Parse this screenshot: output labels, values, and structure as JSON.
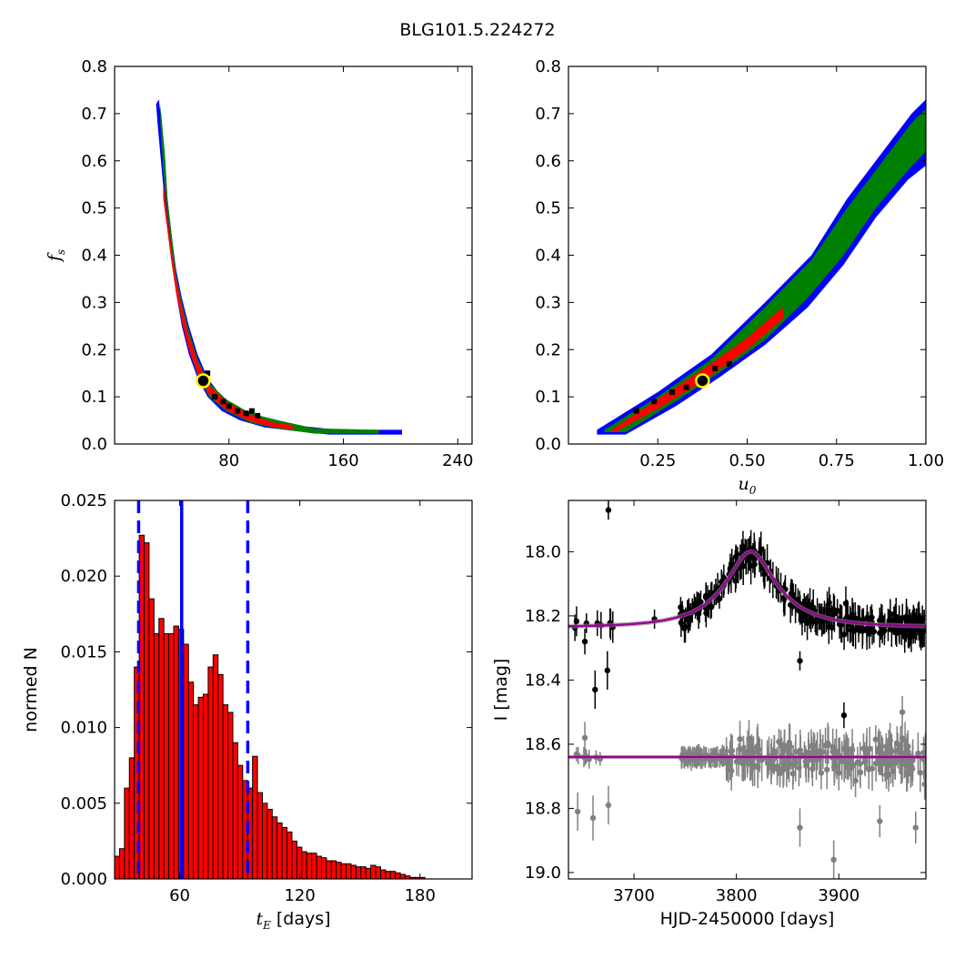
{
  "figure": {
    "title": "BLG101.5.224272"
  },
  "colors": {
    "sigma1": "#ff0000",
    "sigma2": "#008000",
    "sigma3": "#0000ff",
    "best_fill": "#000000",
    "best_marker_edge": "#ffff00",
    "best_marker_face": "#000000",
    "hist_fill": "#ff0000",
    "hist_edge": "#000000",
    "hist_lines": "#0000ff",
    "data_main": "#000000",
    "data_ref": "#808080",
    "model": "#990099"
  },
  "chart_data": [
    {
      "panel": "top-left",
      "type": "heatmap",
      "title": "",
      "xlabel": "",
      "ylabel": "f_s",
      "xlim": [
        0,
        250
      ],
      "ylim": [
        0.0,
        0.8
      ],
      "xticks": [
        80,
        160,
        240
      ],
      "xtick_labels": [
        "80",
        "160",
        "240"
      ],
      "yticks": [
        0.0,
        0.1,
        0.2,
        0.3,
        0.4,
        0.5,
        0.6,
        0.7,
        0.8
      ],
      "ytick_labels": [
        "0.0",
        "0.1",
        "0.2",
        "0.3",
        "0.4",
        "0.5",
        "0.6",
        "0.7",
        "0.8"
      ],
      "regions": {
        "sigma3": [
          [
            31,
            0.73
          ],
          [
            35,
            0.62
          ],
          [
            37,
            0.52
          ],
          [
            40,
            0.44
          ],
          [
            43,
            0.37
          ],
          [
            47,
            0.31
          ],
          [
            52,
            0.25
          ],
          [
            58,
            0.19
          ],
          [
            65,
            0.14
          ],
          [
            75,
            0.1
          ],
          [
            88,
            0.075
          ],
          [
            105,
            0.055
          ],
          [
            125,
            0.04
          ],
          [
            150,
            0.032
          ],
          [
            175,
            0.03
          ],
          [
            201,
            0.03
          ],
          [
            201,
            0.02
          ],
          [
            175,
            0.02
          ],
          [
            150,
            0.02
          ],
          [
            125,
            0.028
          ],
          [
            105,
            0.035
          ],
          [
            88,
            0.05
          ],
          [
            75,
            0.07
          ],
          [
            65,
            0.1
          ],
          [
            58,
            0.14
          ],
          [
            52,
            0.19
          ],
          [
            47,
            0.25
          ],
          [
            43,
            0.32
          ],
          [
            40,
            0.4
          ],
          [
            36,
            0.48
          ],
          [
            33,
            0.58
          ],
          [
            30,
            0.68
          ],
          [
            29,
            0.72
          ]
        ],
        "sigma2": [
          [
            32,
            0.72
          ],
          [
            35,
            0.62
          ],
          [
            37,
            0.52
          ],
          [
            40,
            0.44
          ],
          [
            43,
            0.36
          ],
          [
            47,
            0.3
          ],
          [
            52,
            0.24
          ],
          [
            58,
            0.18
          ],
          [
            66,
            0.13
          ],
          [
            78,
            0.095
          ],
          [
            95,
            0.065
          ],
          [
            115,
            0.05
          ],
          [
            140,
            0.033
          ],
          [
            185,
            0.03
          ],
          [
            185,
            0.022
          ],
          [
            140,
            0.022
          ],
          [
            115,
            0.032
          ],
          [
            95,
            0.045
          ],
          [
            78,
            0.07
          ],
          [
            66,
            0.1
          ],
          [
            58,
            0.145
          ],
          [
            52,
            0.2
          ],
          [
            47,
            0.26
          ],
          [
            43,
            0.33
          ],
          [
            40,
            0.41
          ],
          [
            37,
            0.49
          ],
          [
            34,
            0.58
          ],
          [
            32,
            0.68
          ]
        ],
        "sigma1": [
          [
            34,
            0.56
          ],
          [
            37,
            0.48
          ],
          [
            40,
            0.41
          ],
          [
            43,
            0.35
          ],
          [
            47,
            0.29
          ],
          [
            52,
            0.23
          ],
          [
            58,
            0.175
          ],
          [
            66,
            0.125
          ],
          [
            78,
            0.09
          ],
          [
            95,
            0.062
          ],
          [
            112,
            0.045
          ],
          [
            125,
            0.04
          ],
          [
            125,
            0.03
          ],
          [
            112,
            0.035
          ],
          [
            95,
            0.048
          ],
          [
            78,
            0.072
          ],
          [
            66,
            0.105
          ],
          [
            58,
            0.15
          ],
          [
            52,
            0.2
          ],
          [
            47,
            0.26
          ],
          [
            43,
            0.32
          ],
          [
            40,
            0.38
          ],
          [
            37,
            0.45
          ],
          [
            34,
            0.52
          ]
        ],
        "best_cells": [
          [
            65,
            0.15
          ],
          [
            70,
            0.1
          ],
          [
            76,
            0.09
          ],
          [
            80,
            0.08
          ],
          [
            86,
            0.07
          ],
          [
            92,
            0.065
          ],
          [
            96,
            0.07
          ],
          [
            100,
            0.06
          ]
        ]
      },
      "best_fit": [
        62,
        0.134
      ]
    },
    {
      "panel": "top-right",
      "type": "heatmap",
      "title": "",
      "xlabel": "u_0",
      "ylabel": "",
      "xlim": [
        0.0,
        1.0
      ],
      "ylim": [
        0.0,
        0.8
      ],
      "xticks": [
        0.25,
        0.5,
        0.75,
        1.0
      ],
      "xtick_labels": [
        "0.25",
        "0.50",
        "0.75",
        "1.00"
      ],
      "yticks": [
        0.0,
        0.1,
        0.2,
        0.3,
        0.4,
        0.5,
        0.6,
        0.7,
        0.8
      ],
      "ytick_labels": [
        "0.0",
        "0.1",
        "0.2",
        "0.3",
        "0.4",
        "0.5",
        "0.6",
        "0.7",
        "0.8"
      ],
      "regions": {
        "sigma3": [
          [
            0.08,
            0.03
          ],
          [
            0.25,
            0.11
          ],
          [
            0.4,
            0.19
          ],
          [
            0.55,
            0.3
          ],
          [
            0.68,
            0.4
          ],
          [
            0.78,
            0.52
          ],
          [
            0.88,
            0.62
          ],
          [
            0.96,
            0.7
          ],
          [
            1.0,
            0.73
          ],
          [
            1.0,
            0.59
          ],
          [
            0.95,
            0.56
          ],
          [
            0.86,
            0.48
          ],
          [
            0.77,
            0.38
          ],
          [
            0.67,
            0.29
          ],
          [
            0.55,
            0.21
          ],
          [
            0.42,
            0.14
          ],
          [
            0.3,
            0.08
          ],
          [
            0.16,
            0.02
          ],
          [
            0.08,
            0.02
          ]
        ],
        "sigma2": [
          [
            0.1,
            0.03
          ],
          [
            0.25,
            0.1
          ],
          [
            0.4,
            0.18
          ],
          [
            0.55,
            0.29
          ],
          [
            0.68,
            0.39
          ],
          [
            0.78,
            0.5
          ],
          [
            0.88,
            0.6
          ],
          [
            0.96,
            0.68
          ],
          [
            1.0,
            0.71
          ],
          [
            1.0,
            0.62
          ],
          [
            0.95,
            0.58
          ],
          [
            0.86,
            0.5
          ],
          [
            0.77,
            0.4
          ],
          [
            0.67,
            0.31
          ],
          [
            0.55,
            0.22
          ],
          [
            0.42,
            0.15
          ],
          [
            0.3,
            0.09
          ],
          [
            0.16,
            0.025
          ],
          [
            0.1,
            0.025
          ]
        ],
        "sigma1": [
          [
            0.12,
            0.03
          ],
          [
            0.25,
            0.095
          ],
          [
            0.37,
            0.155
          ],
          [
            0.5,
            0.225
          ],
          [
            0.6,
            0.29
          ],
          [
            0.6,
            0.265
          ],
          [
            0.5,
            0.2
          ],
          [
            0.37,
            0.13
          ],
          [
            0.25,
            0.075
          ],
          [
            0.13,
            0.025
          ]
        ],
        "best_cells": [
          [
            0.19,
            0.07
          ],
          [
            0.24,
            0.09
          ],
          [
            0.29,
            0.11
          ],
          [
            0.33,
            0.12
          ],
          [
            0.41,
            0.16
          ],
          [
            0.45,
            0.17
          ]
        ]
      },
      "best_fit": [
        0.375,
        0.134
      ]
    },
    {
      "panel": "bottom-left",
      "type": "bar",
      "title": "",
      "xlabel": "t_E [days]",
      "ylabel": "normed N",
      "xlim": [
        27.5,
        206
      ],
      "ylim": [
        0.0,
        0.025
      ],
      "xticks": [
        60,
        120,
        180
      ],
      "xtick_labels": [
        "60",
        "120",
        "180"
      ],
      "yticks": [
        0.0,
        0.005,
        0.01,
        0.015,
        0.02,
        0.025
      ],
      "ytick_labels": [
        "0.000",
        "0.005",
        "0.010",
        "0.015",
        "0.020",
        "0.025"
      ],
      "bin_start": 27.5,
      "bin_width": 2.46,
      "values": [
        0.0015,
        0.002,
        0.006,
        0.008,
        0.014,
        0.0227,
        0.0222,
        0.0185,
        0.0162,
        0.0172,
        0.0162,
        0.0162,
        0.0167,
        0.0165,
        0.0155,
        0.013,
        0.0115,
        0.012,
        0.0122,
        0.014,
        0.0148,
        0.0135,
        0.0115,
        0.011,
        0.009,
        0.0075,
        0.0065,
        0.006,
        0.0081,
        0.0057,
        0.005,
        0.0046,
        0.0041,
        0.0037,
        0.0034,
        0.0031,
        0.0025,
        0.0021,
        0.0018,
        0.0017,
        0.0017,
        0.0015,
        0.0014,
        0.0012,
        0.0012,
        0.0011,
        0.001,
        0.001,
        0.0009,
        0.0008,
        0.0008,
        0.0007,
        0.0009,
        0.0008,
        0.0006,
        0.0005,
        0.0005,
        0.0004,
        0.0003,
        0.0002,
        0.0001,
        0.0001,
        0.0001
      ],
      "vlines": [
        {
          "x": 39.5,
          "style": "dashed"
        },
        {
          "x": 61.0,
          "style": "solid"
        },
        {
          "x": 94.0,
          "style": "dashed"
        }
      ]
    },
    {
      "panel": "bottom-right",
      "type": "scatter",
      "title": "",
      "xlabel": "HJD-2450000 [days]",
      "ylabel": "I [mag]",
      "xlim": [
        3636,
        3985
      ],
      "ylim": [
        19.02,
        17.84
      ],
      "y_inverted": true,
      "xticks": [
        3700,
        3800,
        3900
      ],
      "xtick_labels": [
        "3700",
        "3800",
        "3900"
      ],
      "yticks": [
        18.0,
        18.2,
        18.4,
        18.6,
        18.8,
        19.0
      ],
      "ytick_labels": [
        "18.0",
        "18.2",
        "18.4",
        "18.6",
        "18.8",
        "19.0"
      ],
      "event": {
        "t0": 3814,
        "tE": 61,
        "u0": 0.375,
        "fs": 0.134,
        "baseline": 18.235
      },
      "reference_baseline": 18.64,
      "outliers_main": [
        {
          "x": 3675,
          "y": 17.87,
          "err": 0.03
        },
        {
          "x": 3652,
          "y": 18.28,
          "err": 0.04
        },
        {
          "x": 3662,
          "y": 18.43,
          "err": 0.06
        },
        {
          "x": 3674,
          "y": 18.37,
          "err": 0.06
        },
        {
          "x": 3862,
          "y": 18.34,
          "err": 0.03
        },
        {
          "x": 3905,
          "y": 18.51,
          "err": 0.04
        },
        {
          "x": 3720,
          "y": 18.21,
          "err": 0.03
        }
      ],
      "outliers_ref": [
        {
          "x": 3645,
          "y": 18.81,
          "err": 0.06
        },
        {
          "x": 3660,
          "y": 18.83,
          "err": 0.07
        },
        {
          "x": 3675,
          "y": 18.79,
          "err": 0.06
        },
        {
          "x": 3652,
          "y": 18.58,
          "err": 0.05
        },
        {
          "x": 3862,
          "y": 18.86,
          "err": 0.06
        },
        {
          "x": 3895,
          "y": 18.96,
          "err": 0.06
        },
        {
          "x": 3940,
          "y": 18.84,
          "err": 0.05
        },
        {
          "x": 3962,
          "y": 18.5,
          "err": 0.05
        },
        {
          "x": 3975,
          "y": 18.86,
          "err": 0.05
        }
      ],
      "seasons": [
        [
          3640,
          3680,
          8
        ],
        [
          3745,
          3985,
          260
        ]
      ]
    }
  ]
}
